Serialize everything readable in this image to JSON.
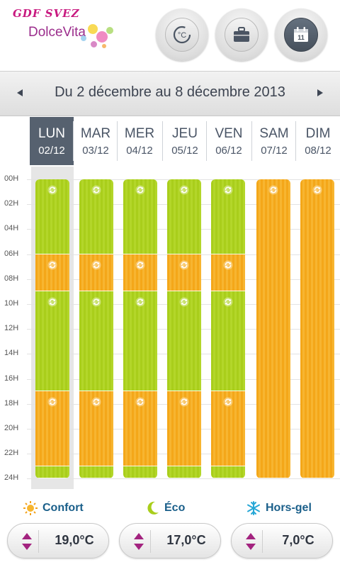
{
  "header": {
    "logo_brand": "GDF SVEZ",
    "logo_product": "DolceVita",
    "buttons": [
      {
        "name": "temperature-mode-button",
        "icon": "thermometer-celsius-icon",
        "label": "°C",
        "active": false
      },
      {
        "name": "vacation-mode-button",
        "icon": "suitcase-icon",
        "active": false
      },
      {
        "name": "calendar-mode-button",
        "icon": "calendar-icon",
        "label": "11",
        "active": true
      }
    ]
  },
  "date_nav": {
    "title": "Du 2 décembre au 8 décembre 2013",
    "prev_icon": "triangle-left-icon",
    "next_icon": "triangle-right-icon"
  },
  "days": [
    {
      "name": "LUN",
      "date": "02/12",
      "active": true
    },
    {
      "name": "MAR",
      "date": "03/12",
      "active": false
    },
    {
      "name": "MER",
      "date": "04/12",
      "active": false
    },
    {
      "name": "JEU",
      "date": "05/12",
      "active": false
    },
    {
      "name": "VEN",
      "date": "06/12",
      "active": false
    },
    {
      "name": "SAM",
      "date": "07/12",
      "active": false
    },
    {
      "name": "DIM",
      "date": "08/12",
      "active": false
    }
  ],
  "hours": [
    "00H",
    "02H",
    "04H",
    "06H",
    "08H",
    "10H",
    "12H",
    "14H",
    "16H",
    "18H",
    "20H",
    "22H",
    "24H"
  ],
  "schedule": {
    "weekday": [
      {
        "start": 0,
        "end": 6,
        "mode": "eco"
      },
      {
        "start": 6,
        "end": 9,
        "mode": "confort"
      },
      {
        "start": 9,
        "end": 17,
        "mode": "eco"
      },
      {
        "start": 17,
        "end": 23,
        "mode": "confort"
      },
      {
        "start": 23,
        "end": 24,
        "mode": "eco"
      }
    ],
    "weekend": [
      {
        "start": 0,
        "end": 24,
        "mode": "confort"
      }
    ]
  },
  "colors": {
    "eco": "#a9ce1b",
    "confort": "#f4a719",
    "active_day": "#56616f",
    "legend_text": "#1a5f8a",
    "stepper_arrows": "#a3237f"
  },
  "legend": [
    {
      "label": "Confort",
      "icon": "sun-icon",
      "value": "19,0°C"
    },
    {
      "label": "Éco",
      "icon": "moon-icon",
      "value": "17,0°C"
    },
    {
      "label": "Hors-gel",
      "icon": "snowflake-icon",
      "value": "7,0°C"
    }
  ]
}
